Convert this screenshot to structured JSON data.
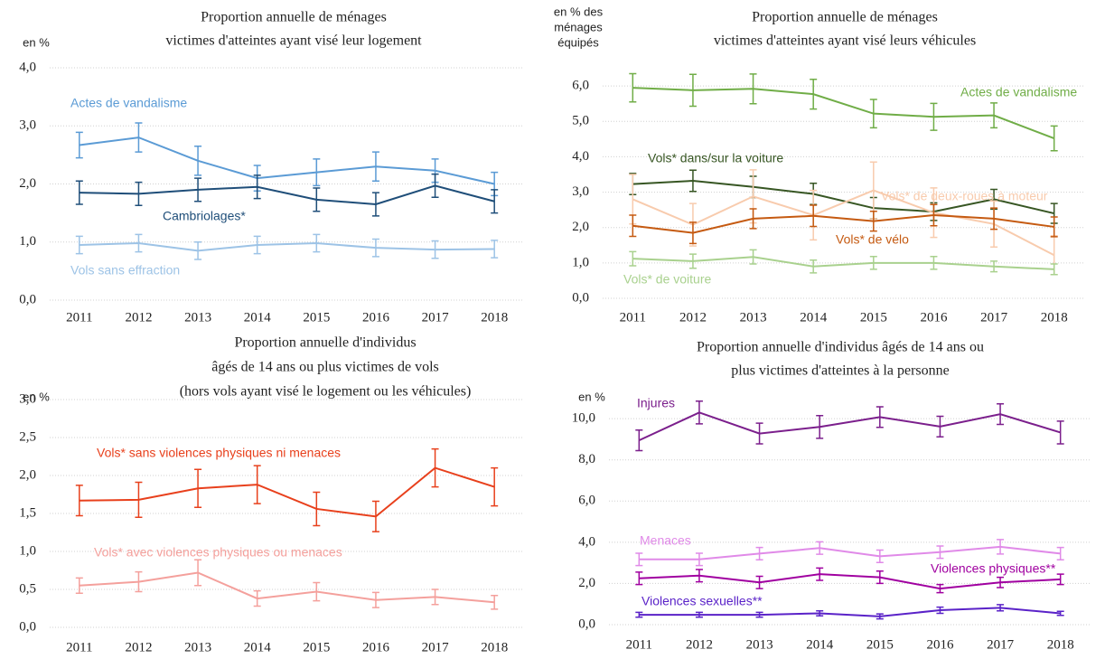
{
  "chart_data": [
    {
      "type": "line",
      "title": [
        "Proportion annuelle  de ménages",
        "victimes d'atteintes  ayant visé leur logement"
      ],
      "ylabel": [
        "en %"
      ],
      "categories": [
        "2011",
        "2012",
        "2013",
        "2014",
        "2015",
        "2016",
        "2017",
        "2018"
      ],
      "ylim": [
        0,
        4
      ],
      "yticks": [
        {
          "value": 0,
          "label": "0,0"
        },
        {
          "value": 1,
          "label": "1,0"
        },
        {
          "value": 2,
          "label": "2,0"
        },
        {
          "value": 3,
          "label": "3,0"
        },
        {
          "value": 4,
          "label": "4,0"
        }
      ],
      "grid": true,
      "series": [
        {
          "name": "Actes de vandalisme",
          "color": "#5b9bd5",
          "values": [
            2.67,
            2.8,
            2.4,
            2.1,
            2.2,
            2.3,
            2.23,
            2.0
          ],
          "errors": [
            0.22,
            0.25,
            0.25,
            0.22,
            0.23,
            0.25,
            0.2,
            0.2
          ]
        },
        {
          "name": "Cambriolages*",
          "color": "#1f4e79",
          "values": [
            1.85,
            1.83,
            1.9,
            1.95,
            1.73,
            1.65,
            1.97,
            1.7
          ],
          "errors": [
            0.2,
            0.2,
            0.2,
            0.2,
            0.2,
            0.2,
            0.2,
            0.2
          ]
        },
        {
          "name": "Vols sans effraction",
          "color": "#9dc3e6",
          "values": [
            0.95,
            0.98,
            0.85,
            0.95,
            0.98,
            0.9,
            0.87,
            0.88
          ],
          "errors": [
            0.15,
            0.15,
            0.15,
            0.15,
            0.15,
            0.15,
            0.15,
            0.15
          ]
        }
      ]
    },
    {
      "type": "line",
      "title": [
        "Proportion annuelle  de ménages",
        "victimes d'atteintes  ayant visé leurs véhicules"
      ],
      "ylabel": [
        "en % des",
        "ménages",
        "équipés"
      ],
      "categories": [
        "2011",
        "2012",
        "2013",
        "2014",
        "2015",
        "2016",
        "2017",
        "2018"
      ],
      "ylim": [
        0,
        7
      ],
      "yticks": [
        {
          "value": 0,
          "label": "0,0"
        },
        {
          "value": 1,
          "label": "1,0"
        },
        {
          "value": 2,
          "label": "2,0"
        },
        {
          "value": 3,
          "label": "3,0"
        },
        {
          "value": 4,
          "label": "4,0"
        },
        {
          "value": 5,
          "label": "5,0"
        },
        {
          "value": 6,
          "label": "6,0"
        }
      ],
      "grid": true,
      "series": [
        {
          "name": "Actes de vandalisme",
          "color": "#70ad47",
          "values": [
            5.95,
            5.88,
            5.92,
            5.77,
            5.22,
            5.13,
            5.17,
            4.52
          ],
          "errors": [
            0.4,
            0.45,
            0.42,
            0.42,
            0.4,
            0.38,
            0.35,
            0.35
          ]
        },
        {
          "name": "Vols* dans/sur la voiture",
          "color": "#375623",
          "values": [
            3.23,
            3.32,
            3.15,
            2.95,
            2.55,
            2.45,
            2.8,
            2.4
          ],
          "errors": [
            0.3,
            0.3,
            0.3,
            0.3,
            0.3,
            0.25,
            0.28,
            0.28
          ]
        },
        {
          "name": "Vols* de deux-roues à moteur",
          "color": "#f8cbad",
          "values": [
            2.8,
            2.08,
            2.88,
            2.35,
            3.05,
            2.42,
            2.1,
            1.22
          ],
          "errors": [
            0.7,
            0.6,
            0.75,
            0.7,
            0.8,
            0.7,
            0.65,
            0.55
          ]
        },
        {
          "name": "Vols* de vélo",
          "color": "#c55a11",
          "values": [
            2.05,
            1.85,
            2.25,
            2.33,
            2.18,
            2.35,
            2.25,
            2.02
          ],
          "errors": [
            0.3,
            0.3,
            0.28,
            0.3,
            0.28,
            0.3,
            0.3,
            0.28
          ]
        },
        {
          "name": "Vols* de voiture",
          "color": "#a9d18e",
          "values": [
            1.12,
            1.05,
            1.17,
            0.9,
            1.0,
            1.0,
            0.9,
            0.82
          ],
          "errors": [
            0.2,
            0.2,
            0.2,
            0.18,
            0.18,
            0.18,
            0.15,
            0.15
          ]
        }
      ]
    },
    {
      "type": "line",
      "title": [
        "Proportion annuelle  d'individus",
        "âgés de 14 ans ou plus victimes de vols",
        "(hors vols ayant visé le logement  ou les véhicules)"
      ],
      "ylabel": [
        "en %"
      ],
      "categories": [
        "2011",
        "2012",
        "2013",
        "2014",
        "2015",
        "2016",
        "2017",
        "2018"
      ],
      "ylim": [
        0,
        3
      ],
      "yticks": [
        {
          "value": 0,
          "label": "0,0"
        },
        {
          "value": 0.5,
          "label": "0,5"
        },
        {
          "value": 1,
          "label": "1,0"
        },
        {
          "value": 1.5,
          "label": "1,5"
        },
        {
          "value": 2,
          "label": "2,0"
        },
        {
          "value": 2.5,
          "label": "2,5"
        },
        {
          "value": 3,
          "label": "3,0"
        }
      ],
      "grid": true,
      "series": [
        {
          "name": "Vols* sans violences physiques ni menaces",
          "color": "#e8401c",
          "values": [
            1.67,
            1.68,
            1.83,
            1.88,
            1.56,
            1.46,
            2.1,
            1.85
          ],
          "errors": [
            0.2,
            0.23,
            0.25,
            0.25,
            0.22,
            0.2,
            0.25,
            0.25
          ]
        },
        {
          "name": "Vols* avec violences physiques ou menaces",
          "color": "#f4a09c",
          "values": [
            0.55,
            0.6,
            0.72,
            0.38,
            0.47,
            0.36,
            0.4,
            0.33
          ],
          "errors": [
            0.1,
            0.13,
            0.17,
            0.1,
            0.12,
            0.1,
            0.1,
            0.09
          ]
        }
      ]
    },
    {
      "type": "line",
      "title": [
        "Proportion annuelle  d'individus  âgés de 14 ans ou",
        "plus victimes d'atteintes à la personne"
      ],
      "ylabel": [
        "en %"
      ],
      "categories": [
        "2011",
        "2012",
        "2013",
        "2014",
        "2015",
        "2016",
        "2017",
        "2018"
      ],
      "ylim": [
        0,
        11.5
      ],
      "yticks": [
        {
          "value": 0,
          "label": "0,0"
        },
        {
          "value": 2,
          "label": "2,0"
        },
        {
          "value": 4,
          "label": "4,0"
        },
        {
          "value": 6,
          "label": "6,0"
        },
        {
          "value": 8,
          "label": "8,0"
        },
        {
          "value": 10,
          "label": "10,0"
        }
      ],
      "grid": true,
      "series": [
        {
          "name": "Injures",
          "color": "#7b1f8c",
          "values": [
            8.95,
            10.3,
            9.28,
            9.6,
            10.08,
            9.62,
            10.22,
            9.33
          ],
          "errors": [
            0.5,
            0.55,
            0.5,
            0.55,
            0.5,
            0.5,
            0.5,
            0.55
          ]
        },
        {
          "name": "Menaces",
          "color": "#e08ae8",
          "values": [
            3.17,
            3.17,
            3.45,
            3.72,
            3.32,
            3.52,
            3.78,
            3.45
          ],
          "errors": [
            0.3,
            0.3,
            0.3,
            0.3,
            0.3,
            0.3,
            0.35,
            0.3
          ]
        },
        {
          "name": "Violences physiques**",
          "color": "#a000a0",
          "values": [
            2.25,
            2.38,
            2.05,
            2.45,
            2.3,
            1.75,
            2.05,
            2.2
          ],
          "errors": [
            0.3,
            0.3,
            0.3,
            0.3,
            0.3,
            0.2,
            0.25,
            0.25
          ]
        },
        {
          "name": "Violences sexuelles**",
          "color": "#5a22c8",
          "values": [
            0.48,
            0.48,
            0.48,
            0.55,
            0.4,
            0.7,
            0.82,
            0.55
          ],
          "errors": [
            0.12,
            0.12,
            0.12,
            0.12,
            0.12,
            0.15,
            0.15,
            0.1
          ]
        }
      ]
    }
  ]
}
